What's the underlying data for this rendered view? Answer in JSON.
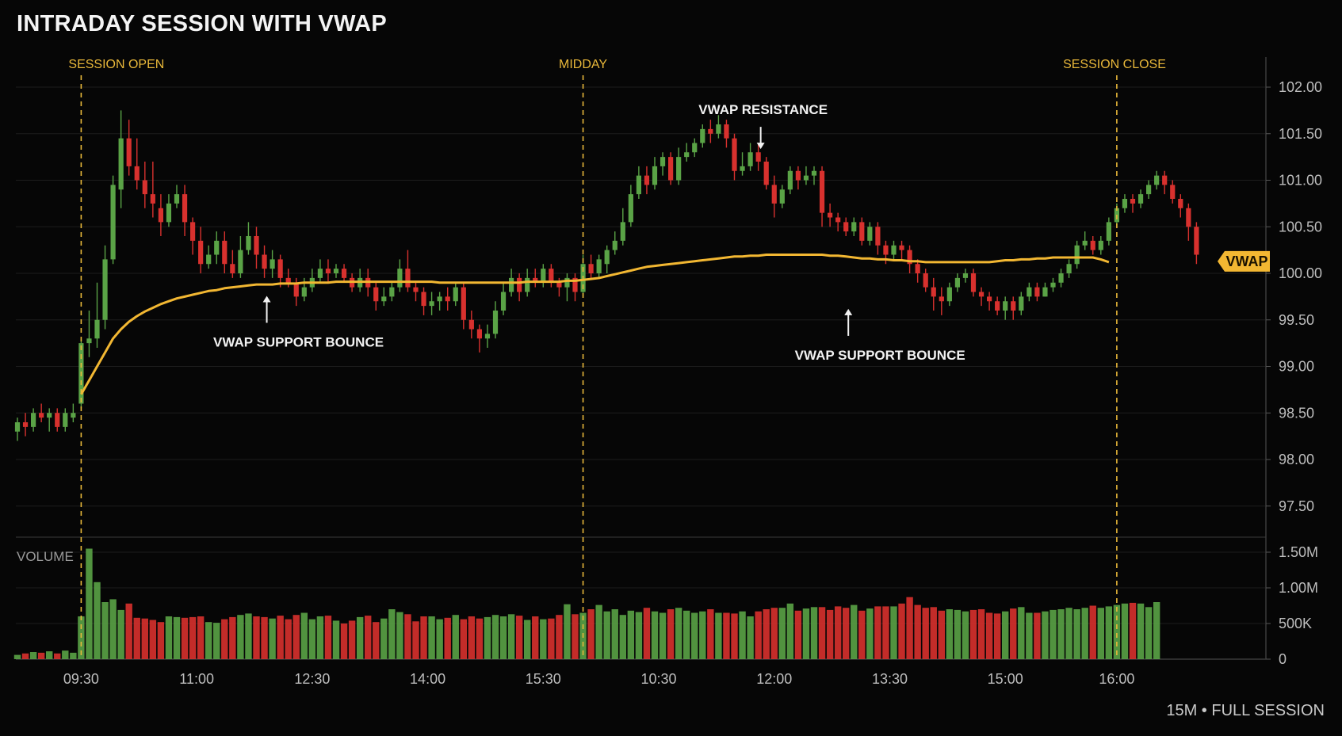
{
  "title": "INTRADAY SESSION WITH VWAP",
  "footer": "15M • FULL SESSION",
  "colors": {
    "background": "#060606",
    "up": "#5aa346",
    "down": "#d8312e",
    "vwap": "#f2b732",
    "marker": "#e9b83a",
    "grid": "#1c1c1c"
  },
  "chart_data": {
    "type": "candlestick",
    "title": "INTRADAY SESSION WITH VWAP",
    "price_axis": {
      "ylim": [
        97.2,
        102.3
      ],
      "ticks": [
        "102.00",
        "101.50",
        "101.00",
        "100.50",
        "100.00",
        "99.50",
        "99.00",
        "98.50",
        "98.00",
        "97.50"
      ],
      "tick_values": [
        102.0,
        101.5,
        101.0,
        100.5,
        100.0,
        99.5,
        99.0,
        98.5,
        98.0,
        97.5
      ]
    },
    "volume_axis": {
      "label": "VOLUME",
      "ticks": [
        "1.50M",
        "1.00M",
        "500K",
        "0"
      ],
      "tick_values": [
        1500000,
        1000000,
        500000,
        0
      ],
      "ylim": [
        0,
        1600000
      ]
    },
    "x_ticks": [
      "09:30",
      "11:00",
      "12:30",
      "14:00",
      "15:30",
      "10:30",
      "12:00",
      "13:30",
      "15:00",
      "16:00"
    ],
    "x_tick_bars": [
      8,
      22.5,
      37,
      51.5,
      66,
      80.5,
      95,
      109.5,
      124,
      138
    ],
    "markers": [
      {
        "label": "SESSION OPEN",
        "bar": 8
      },
      {
        "label": "MIDDAY",
        "bar": 71
      },
      {
        "label": "SESSION CLOSE",
        "bar": 138
      }
    ],
    "annotations": [
      {
        "label": "VWAP SUPPORT BOUNCE",
        "bar": 31,
        "arrow": "up",
        "price": 99.86
      },
      {
        "label": "VWAP RESISTANCE",
        "bar": 93,
        "arrow": "down",
        "price": 101.25
      },
      {
        "label": "VWAP SUPPORT BOUNCE",
        "bar": 104,
        "arrow": "up",
        "price": 99.72
      }
    ],
    "vwap_tag": "VWAP",
    "vwap": [
      98.7,
      98.7,
      98.7,
      98.7,
      98.7,
      98.7,
      98.7,
      98.7,
      98.7,
      98.85,
      99.0,
      99.15,
      99.3,
      99.4,
      99.48,
      99.54,
      99.59,
      99.63,
      99.67,
      99.7,
      99.73,
      99.75,
      99.77,
      99.79,
      99.81,
      99.82,
      99.84,
      99.85,
      99.86,
      99.87,
      99.88,
      99.88,
      99.88,
      99.89,
      99.89,
      99.89,
      99.9,
      99.9,
      99.9,
      99.9,
      99.91,
      99.91,
      99.91,
      99.91,
      99.91,
      99.91,
      99.91,
      99.91,
      99.91,
      99.91,
      99.91,
      99.91,
      99.91,
      99.9,
      99.9,
      99.9,
      99.9,
      99.9,
      99.9,
      99.9,
      99.9,
      99.9,
      99.9,
      99.9,
      99.91,
      99.91,
      99.91,
      99.91,
      99.91,
      99.92,
      99.92,
      99.93,
      99.94,
      99.95,
      99.97,
      99.99,
      100.01,
      100.03,
      100.05,
      100.07,
      100.08,
      100.09,
      100.1,
      100.11,
      100.12,
      100.13,
      100.14,
      100.15,
      100.16,
      100.17,
      100.18,
      100.18,
      100.19,
      100.19,
      100.2,
      100.2,
      100.2,
      100.2,
      100.2,
      100.2,
      100.2,
      100.2,
      100.19,
      100.19,
      100.18,
      100.17,
      100.16,
      100.16,
      100.15,
      100.15,
      100.14,
      100.14,
      100.13,
      100.13,
      100.12,
      100.12,
      100.12,
      100.12,
      100.12,
      100.12,
      100.12,
      100.12,
      100.12,
      100.13,
      100.14,
      100.14,
      100.15,
      100.15,
      100.16,
      100.16,
      100.17,
      100.17,
      100.17,
      100.17,
      100.17,
      100.17,
      100.15,
      100.12
    ],
    "candles": [
      [
        98.3,
        98.4,
        98.45,
        98.2
      ],
      [
        98.4,
        98.35,
        98.5,
        98.25
      ],
      [
        98.35,
        98.5,
        98.55,
        98.3
      ],
      [
        98.5,
        98.45,
        98.6,
        98.4
      ],
      [
        98.45,
        98.5,
        98.55,
        98.3
      ],
      [
        98.5,
        98.35,
        98.55,
        98.3
      ],
      [
        98.35,
        98.5,
        98.55,
        98.3
      ],
      [
        98.45,
        98.5,
        98.6,
        98.4
      ],
      [
        98.6,
        99.25,
        99.3,
        98.55
      ],
      [
        99.25,
        99.3,
        99.6,
        99.1
      ],
      [
        99.3,
        99.5,
        99.9,
        99.2
      ],
      [
        99.5,
        100.15,
        100.3,
        99.4
      ],
      [
        100.15,
        100.95,
        101.05,
        100.1
      ],
      [
        100.9,
        101.45,
        101.75,
        100.7
      ],
      [
        101.45,
        101.15,
        101.65,
        101.05
      ],
      [
        101.15,
        101.0,
        101.45,
        100.9
      ],
      [
        101.0,
        100.85,
        101.2,
        100.7
      ],
      [
        100.85,
        100.75,
        101.2,
        100.6
      ],
      [
        100.7,
        100.55,
        100.85,
        100.4
      ],
      [
        100.55,
        100.75,
        100.85,
        100.5
      ],
      [
        100.75,
        100.85,
        100.95,
        100.7
      ],
      [
        100.85,
        100.55,
        100.95,
        100.4
      ],
      [
        100.55,
        100.35,
        100.6,
        100.2
      ],
      [
        100.35,
        100.1,
        100.5,
        100.0
      ],
      [
        100.1,
        100.2,
        100.3,
        100.05
      ],
      [
        100.2,
        100.35,
        100.45,
        100.1
      ],
      [
        100.35,
        100.1,
        100.45,
        100.0
      ],
      [
        100.1,
        100.0,
        100.25,
        99.95
      ],
      [
        100.0,
        100.25,
        100.4,
        99.95
      ],
      [
        100.25,
        100.4,
        100.55,
        100.2
      ],
      [
        100.4,
        100.2,
        100.5,
        100.05
      ],
      [
        100.2,
        100.05,
        100.3,
        99.95
      ],
      [
        100.05,
        100.15,
        100.25,
        99.95
      ],
      [
        100.15,
        99.95,
        100.2,
        99.85
      ],
      [
        99.95,
        99.9,
        100.05,
        99.85
      ],
      [
        99.9,
        99.75,
        99.95,
        99.65
      ],
      [
        99.75,
        99.85,
        99.95,
        99.7
      ],
      [
        99.85,
        99.95,
        100.05,
        99.8
      ],
      [
        99.95,
        100.05,
        100.15,
        99.9
      ],
      [
        100.05,
        100.0,
        100.15,
        99.9
      ],
      [
        100.0,
        100.05,
        100.1,
        99.95
      ],
      [
        100.05,
        99.95,
        100.1,
        99.9
      ],
      [
        99.95,
        99.85,
        100.0,
        99.8
      ],
      [
        99.85,
        99.95,
        100.05,
        99.8
      ],
      [
        99.95,
        99.85,
        100.05,
        99.75
      ],
      [
        99.85,
        99.7,
        99.9,
        99.6
      ],
      [
        99.7,
        99.75,
        99.85,
        99.65
      ],
      [
        99.75,
        99.85,
        99.9,
        99.7
      ],
      [
        99.85,
        100.05,
        100.15,
        99.8
      ],
      [
        100.05,
        99.85,
        100.25,
        99.8
      ],
      [
        99.85,
        99.8,
        99.9,
        99.7
      ],
      [
        99.8,
        99.65,
        99.85,
        99.55
      ],
      [
        99.65,
        99.7,
        99.8,
        99.55
      ],
      [
        99.7,
        99.75,
        99.8,
        99.6
      ],
      [
        99.75,
        99.7,
        99.85,
        99.6
      ],
      [
        99.7,
        99.85,
        99.9,
        99.65
      ],
      [
        99.85,
        99.5,
        99.9,
        99.4
      ],
      [
        99.5,
        99.4,
        99.6,
        99.3
      ],
      [
        99.4,
        99.3,
        99.45,
        99.15
      ],
      [
        99.3,
        99.35,
        99.45,
        99.2
      ],
      [
        99.35,
        99.6,
        99.7,
        99.3
      ],
      [
        99.6,
        99.8,
        99.9,
        99.55
      ],
      [
        99.8,
        99.95,
        100.05,
        99.75
      ],
      [
        99.95,
        99.8,
        100.0,
        99.7
      ],
      [
        99.8,
        99.95,
        100.05,
        99.75
      ],
      [
        99.95,
        99.9,
        100.05,
        99.85
      ],
      [
        99.9,
        100.05,
        100.1,
        99.85
      ],
      [
        100.05,
        99.9,
        100.1,
        99.85
      ],
      [
        99.9,
        99.85,
        99.95,
        99.75
      ],
      [
        99.85,
        99.95,
        100.0,
        99.7
      ],
      [
        99.95,
        99.8,
        100.0,
        99.7
      ],
      [
        99.8,
        100.1,
        100.2,
        99.75
      ],
      [
        100.1,
        100.0,
        100.2,
        99.95
      ],
      [
        100.0,
        100.15,
        100.2,
        99.95
      ],
      [
        100.1,
        100.25,
        100.3,
        100.0
      ],
      [
        100.25,
        100.35,
        100.45,
        100.2
      ],
      [
        100.35,
        100.55,
        100.7,
        100.3
      ],
      [
        100.55,
        100.85,
        100.95,
        100.5
      ],
      [
        100.85,
        101.05,
        101.15,
        100.8
      ],
      [
        101.05,
        100.95,
        101.15,
        100.85
      ],
      [
        100.95,
        101.15,
        101.25,
        100.9
      ],
      [
        101.15,
        101.25,
        101.3,
        101.05
      ],
      [
        101.25,
        101.0,
        101.3,
        100.95
      ],
      [
        101.0,
        101.25,
        101.35,
        100.95
      ],
      [
        101.25,
        101.3,
        101.4,
        101.2
      ],
      [
        101.3,
        101.4,
        101.45,
        101.25
      ],
      [
        101.4,
        101.55,
        101.6,
        101.35
      ],
      [
        101.55,
        101.5,
        101.65,
        101.4
      ],
      [
        101.5,
        101.6,
        101.7,
        101.45
      ],
      [
        101.6,
        101.45,
        101.65,
        101.35
      ],
      [
        101.45,
        101.1,
        101.5,
        101.0
      ],
      [
        101.1,
        101.15,
        101.3,
        101.05
      ],
      [
        101.15,
        101.3,
        101.4,
        101.1
      ],
      [
        101.3,
        101.2,
        101.4,
        101.1
      ],
      [
        101.2,
        100.95,
        101.25,
        100.9
      ],
      [
        100.95,
        100.75,
        101.05,
        100.6
      ],
      [
        100.75,
        100.9,
        100.95,
        100.7
      ],
      [
        100.9,
        101.1,
        101.15,
        100.85
      ],
      [
        101.1,
        101.0,
        101.15,
        100.9
      ],
      [
        101.0,
        101.05,
        101.15,
        100.95
      ],
      [
        101.05,
        101.1,
        101.15,
        100.95
      ],
      [
        101.1,
        100.65,
        101.15,
        100.5
      ],
      [
        100.65,
        100.6,
        100.75,
        100.5
      ],
      [
        100.6,
        100.55,
        100.65,
        100.45
      ],
      [
        100.55,
        100.45,
        100.6,
        100.4
      ],
      [
        100.45,
        100.55,
        100.6,
        100.4
      ],
      [
        100.55,
        100.35,
        100.6,
        100.3
      ],
      [
        100.35,
        100.5,
        100.55,
        100.3
      ],
      [
        100.5,
        100.3,
        100.55,
        100.2
      ],
      [
        100.3,
        100.2,
        100.35,
        100.1
      ],
      [
        100.2,
        100.3,
        100.35,
        100.15
      ],
      [
        100.3,
        100.25,
        100.35,
        100.15
      ],
      [
        100.25,
        100.1,
        100.3,
        100.0
      ],
      [
        100.1,
        100.0,
        100.15,
        99.9
      ],
      [
        100.0,
        99.85,
        100.05,
        99.8
      ],
      [
        99.85,
        99.75,
        99.95,
        99.6
      ],
      [
        99.75,
        99.7,
        99.85,
        99.55
      ],
      [
        99.7,
        99.85,
        99.9,
        99.65
      ],
      [
        99.85,
        99.95,
        100.0,
        99.8
      ],
      [
        99.95,
        100.0,
        100.05,
        99.9
      ],
      [
        100.0,
        99.8,
        100.05,
        99.75
      ],
      [
        99.8,
        99.75,
        99.85,
        99.65
      ],
      [
        99.75,
        99.7,
        99.8,
        99.6
      ],
      [
        99.7,
        99.6,
        99.75,
        99.55
      ],
      [
        99.6,
        99.7,
        99.75,
        99.5
      ],
      [
        99.7,
        99.6,
        99.75,
        99.5
      ],
      [
        99.6,
        99.75,
        99.8,
        99.55
      ],
      [
        99.75,
        99.85,
        99.9,
        99.7
      ],
      [
        99.85,
        99.75,
        99.9,
        99.7
      ],
      [
        99.75,
        99.85,
        99.9,
        99.75
      ],
      [
        99.85,
        99.9,
        99.95,
        99.8
      ],
      [
        99.9,
        100.0,
        100.05,
        99.85
      ],
      [
        100.0,
        100.1,
        100.15,
        99.95
      ],
      [
        100.1,
        100.3,
        100.35,
        100.05
      ],
      [
        100.3,
        100.35,
        100.45,
        100.25
      ],
      [
        100.35,
        100.25,
        100.4,
        100.2
      ],
      [
        100.25,
        100.35,
        100.4,
        100.2
      ],
      [
        100.35,
        100.55,
        100.6,
        100.3
      ],
      [
        100.55,
        100.7,
        100.75,
        100.5
      ],
      [
        100.7,
        100.8,
        100.85,
        100.65
      ],
      [
        100.8,
        100.75,
        100.85,
        100.65
      ],
      [
        100.75,
        100.85,
        100.9,
        100.7
      ],
      [
        100.85,
        100.95,
        101.0,
        100.8
      ],
      [
        100.95,
        101.05,
        101.1,
        100.9
      ],
      [
        101.05,
        100.95,
        101.1,
        100.85
      ],
      [
        100.95,
        100.8,
        101.0,
        100.75
      ],
      [
        100.8,
        100.7,
        100.85,
        100.6
      ],
      [
        100.7,
        100.5,
        100.75,
        100.35
      ],
      [
        100.5,
        100.2,
        100.55,
        100.1
      ]
    ],
    "volume": [
      60000,
      80000,
      100000,
      90000,
      110000,
      80000,
      120000,
      90000,
      600000,
      1550000,
      1080000,
      800000,
      840000,
      690000,
      780000,
      580000,
      570000,
      550000,
      520000,
      600000,
      590000,
      580000,
      590000,
      600000,
      520000,
      510000,
      560000,
      590000,
      620000,
      640000,
      600000,
      590000,
      570000,
      610000,
      560000,
      620000,
      650000,
      560000,
      600000,
      610000,
      540000,
      500000,
      540000,
      590000,
      610000,
      520000,
      570000,
      700000,
      660000,
      630000,
      530000,
      600000,
      600000,
      560000,
      580000,
      620000,
      560000,
      600000,
      570000,
      590000,
      620000,
      600000,
      630000,
      610000,
      550000,
      600000,
      560000,
      570000,
      620000,
      770000,
      630000,
      650000,
      700000,
      760000,
      670000,
      700000,
      620000,
      680000,
      660000,
      720000,
      670000,
      650000,
      700000,
      720000,
      680000,
      650000,
      670000,
      700000,
      650000,
      650000,
      640000,
      670000,
      600000,
      670000,
      700000,
      720000,
      720000,
      780000,
      680000,
      710000,
      730000,
      730000,
      690000,
      740000,
      720000,
      760000,
      680000,
      710000,
      740000,
      740000,
      740000,
      780000,
      870000,
      760000,
      720000,
      730000,
      680000,
      700000,
      690000,
      670000,
      690000,
      700000,
      650000,
      640000,
      670000,
      710000,
      730000,
      650000,
      650000,
      670000,
      690000,
      700000,
      720000,
      700000,
      720000,
      750000,
      720000,
      740000,
      760000,
      780000,
      790000,
      780000,
      730000,
      800000
    ]
  }
}
